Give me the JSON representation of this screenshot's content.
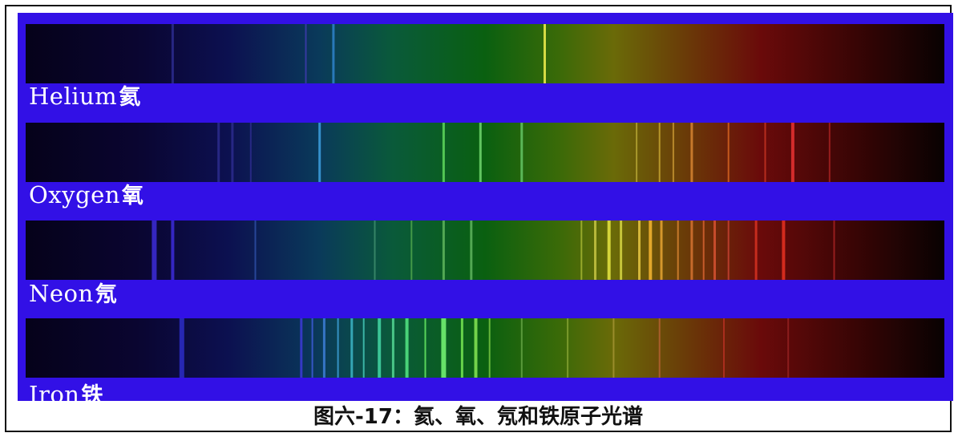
{
  "colors": {
    "background_blue": "#3210e6",
    "text_white": "#ffffff"
  },
  "spectra": [
    {
      "element": "Helium",
      "element_zh": "氦",
      "lines": [
        {
          "pos": 0.16,
          "color": "#2a2a8a",
          "w": 3
        },
        {
          "pos": 0.305,
          "color": "#3a3aa8",
          "w": 2
        },
        {
          "pos": 0.335,
          "color": "#2b7fc4",
          "w": 3
        },
        {
          "pos": 0.565,
          "color": "#e8e84a",
          "w": 3
        }
      ]
    },
    {
      "element": "Oxygen",
      "element_zh": "氧",
      "lines": [
        {
          "pos": 0.21,
          "color": "#2a2a8a",
          "w": 3
        },
        {
          "pos": 0.225,
          "color": "#2a2a8a",
          "w": 3
        },
        {
          "pos": 0.245,
          "color": "#2a2a8a",
          "w": 2
        },
        {
          "pos": 0.32,
          "color": "#3a9ad8",
          "w": 3
        },
        {
          "pos": 0.455,
          "color": "#5ad05a",
          "w": 3
        },
        {
          "pos": 0.495,
          "color": "#6ad06a",
          "w": 3
        },
        {
          "pos": 0.54,
          "color": "#60c060",
          "w": 3
        },
        {
          "pos": 0.665,
          "color": "#b0a030",
          "w": 2
        },
        {
          "pos": 0.69,
          "color": "#c0a030",
          "w": 2
        },
        {
          "pos": 0.705,
          "color": "#c09030",
          "w": 2
        },
        {
          "pos": 0.725,
          "color": "#d08030",
          "w": 3
        },
        {
          "pos": 0.765,
          "color": "#d06020",
          "w": 2
        },
        {
          "pos": 0.805,
          "color": "#c03020",
          "w": 2
        },
        {
          "pos": 0.835,
          "color": "#e03030",
          "w": 4
        },
        {
          "pos": 0.875,
          "color": "#a02020",
          "w": 2
        }
      ]
    },
    {
      "element": "Neon",
      "element_zh": "氖",
      "lines": [
        {
          "pos": 0.14,
          "color": "#3a2ad0",
          "w": 6
        },
        {
          "pos": 0.16,
          "color": "#3a2ad0",
          "w": 4
        },
        {
          "pos": 0.25,
          "color": "#2a4aa0",
          "w": 2
        },
        {
          "pos": 0.38,
          "color": "#3a8a6a",
          "w": 2
        },
        {
          "pos": 0.42,
          "color": "#4aa04a",
          "w": 2
        },
        {
          "pos": 0.455,
          "color": "#5ab05a",
          "w": 3
        },
        {
          "pos": 0.485,
          "color": "#5ab05a",
          "w": 3
        },
        {
          "pos": 0.605,
          "color": "#a0b030",
          "w": 2
        },
        {
          "pos": 0.62,
          "color": "#c0c040",
          "w": 3
        },
        {
          "pos": 0.635,
          "color": "#e0e040",
          "w": 4
        },
        {
          "pos": 0.648,
          "color": "#d0d040",
          "w": 3
        },
        {
          "pos": 0.668,
          "color": "#e0c040",
          "w": 3
        },
        {
          "pos": 0.68,
          "color": "#f0b030",
          "w": 4
        },
        {
          "pos": 0.692,
          "color": "#e0a030",
          "w": 3
        },
        {
          "pos": 0.71,
          "color": "#d08030",
          "w": 2
        },
        {
          "pos": 0.725,
          "color": "#d07030",
          "w": 3
        },
        {
          "pos": 0.738,
          "color": "#d06030",
          "w": 2
        },
        {
          "pos": 0.75,
          "color": "#d05030",
          "w": 3
        },
        {
          "pos": 0.765,
          "color": "#c04030",
          "w": 2
        },
        {
          "pos": 0.795,
          "color": "#d03020",
          "w": 3
        },
        {
          "pos": 0.825,
          "color": "#e03020",
          "w": 4
        },
        {
          "pos": 0.88,
          "color": "#a02020",
          "w": 2
        }
      ]
    },
    {
      "element": "Iron",
      "element_zh": "铁",
      "lines": [
        {
          "pos": 0.17,
          "color": "#2a2ac0",
          "w": 6
        },
        {
          "pos": 0.3,
          "color": "#3a3ad0",
          "w": 3
        },
        {
          "pos": 0.312,
          "color": "#3a5ad0",
          "w": 2
        },
        {
          "pos": 0.325,
          "color": "#3a7ad0",
          "w": 3
        },
        {
          "pos": 0.34,
          "color": "#3a9ad0",
          "w": 2
        },
        {
          "pos": 0.355,
          "color": "#3ab0c0",
          "w": 3
        },
        {
          "pos": 0.368,
          "color": "#40c0b0",
          "w": 2
        },
        {
          "pos": 0.385,
          "color": "#40d0a0",
          "w": 4
        },
        {
          "pos": 0.4,
          "color": "#50d090",
          "w": 3
        },
        {
          "pos": 0.415,
          "color": "#50e080",
          "w": 4
        },
        {
          "pos": 0.435,
          "color": "#60e060",
          "w": 2
        },
        {
          "pos": 0.455,
          "color": "#70f070",
          "w": 6
        },
        {
          "pos": 0.475,
          "color": "#70e050",
          "w": 3
        },
        {
          "pos": 0.49,
          "color": "#80e050",
          "w": 4
        },
        {
          "pos": 0.505,
          "color": "#70c040",
          "w": 2
        },
        {
          "pos": 0.54,
          "color": "#60a040",
          "w": 2
        },
        {
          "pos": 0.59,
          "color": "#80a030",
          "w": 2
        },
        {
          "pos": 0.64,
          "color": "#a09030",
          "w": 2
        },
        {
          "pos": 0.69,
          "color": "#b06030",
          "w": 2
        },
        {
          "pos": 0.76,
          "color": "#b03020",
          "w": 2
        },
        {
          "pos": 0.83,
          "color": "#902020",
          "w": 2
        }
      ]
    }
  ],
  "caption": "图六-17：氦、氧、氖和铁原子光谱"
}
